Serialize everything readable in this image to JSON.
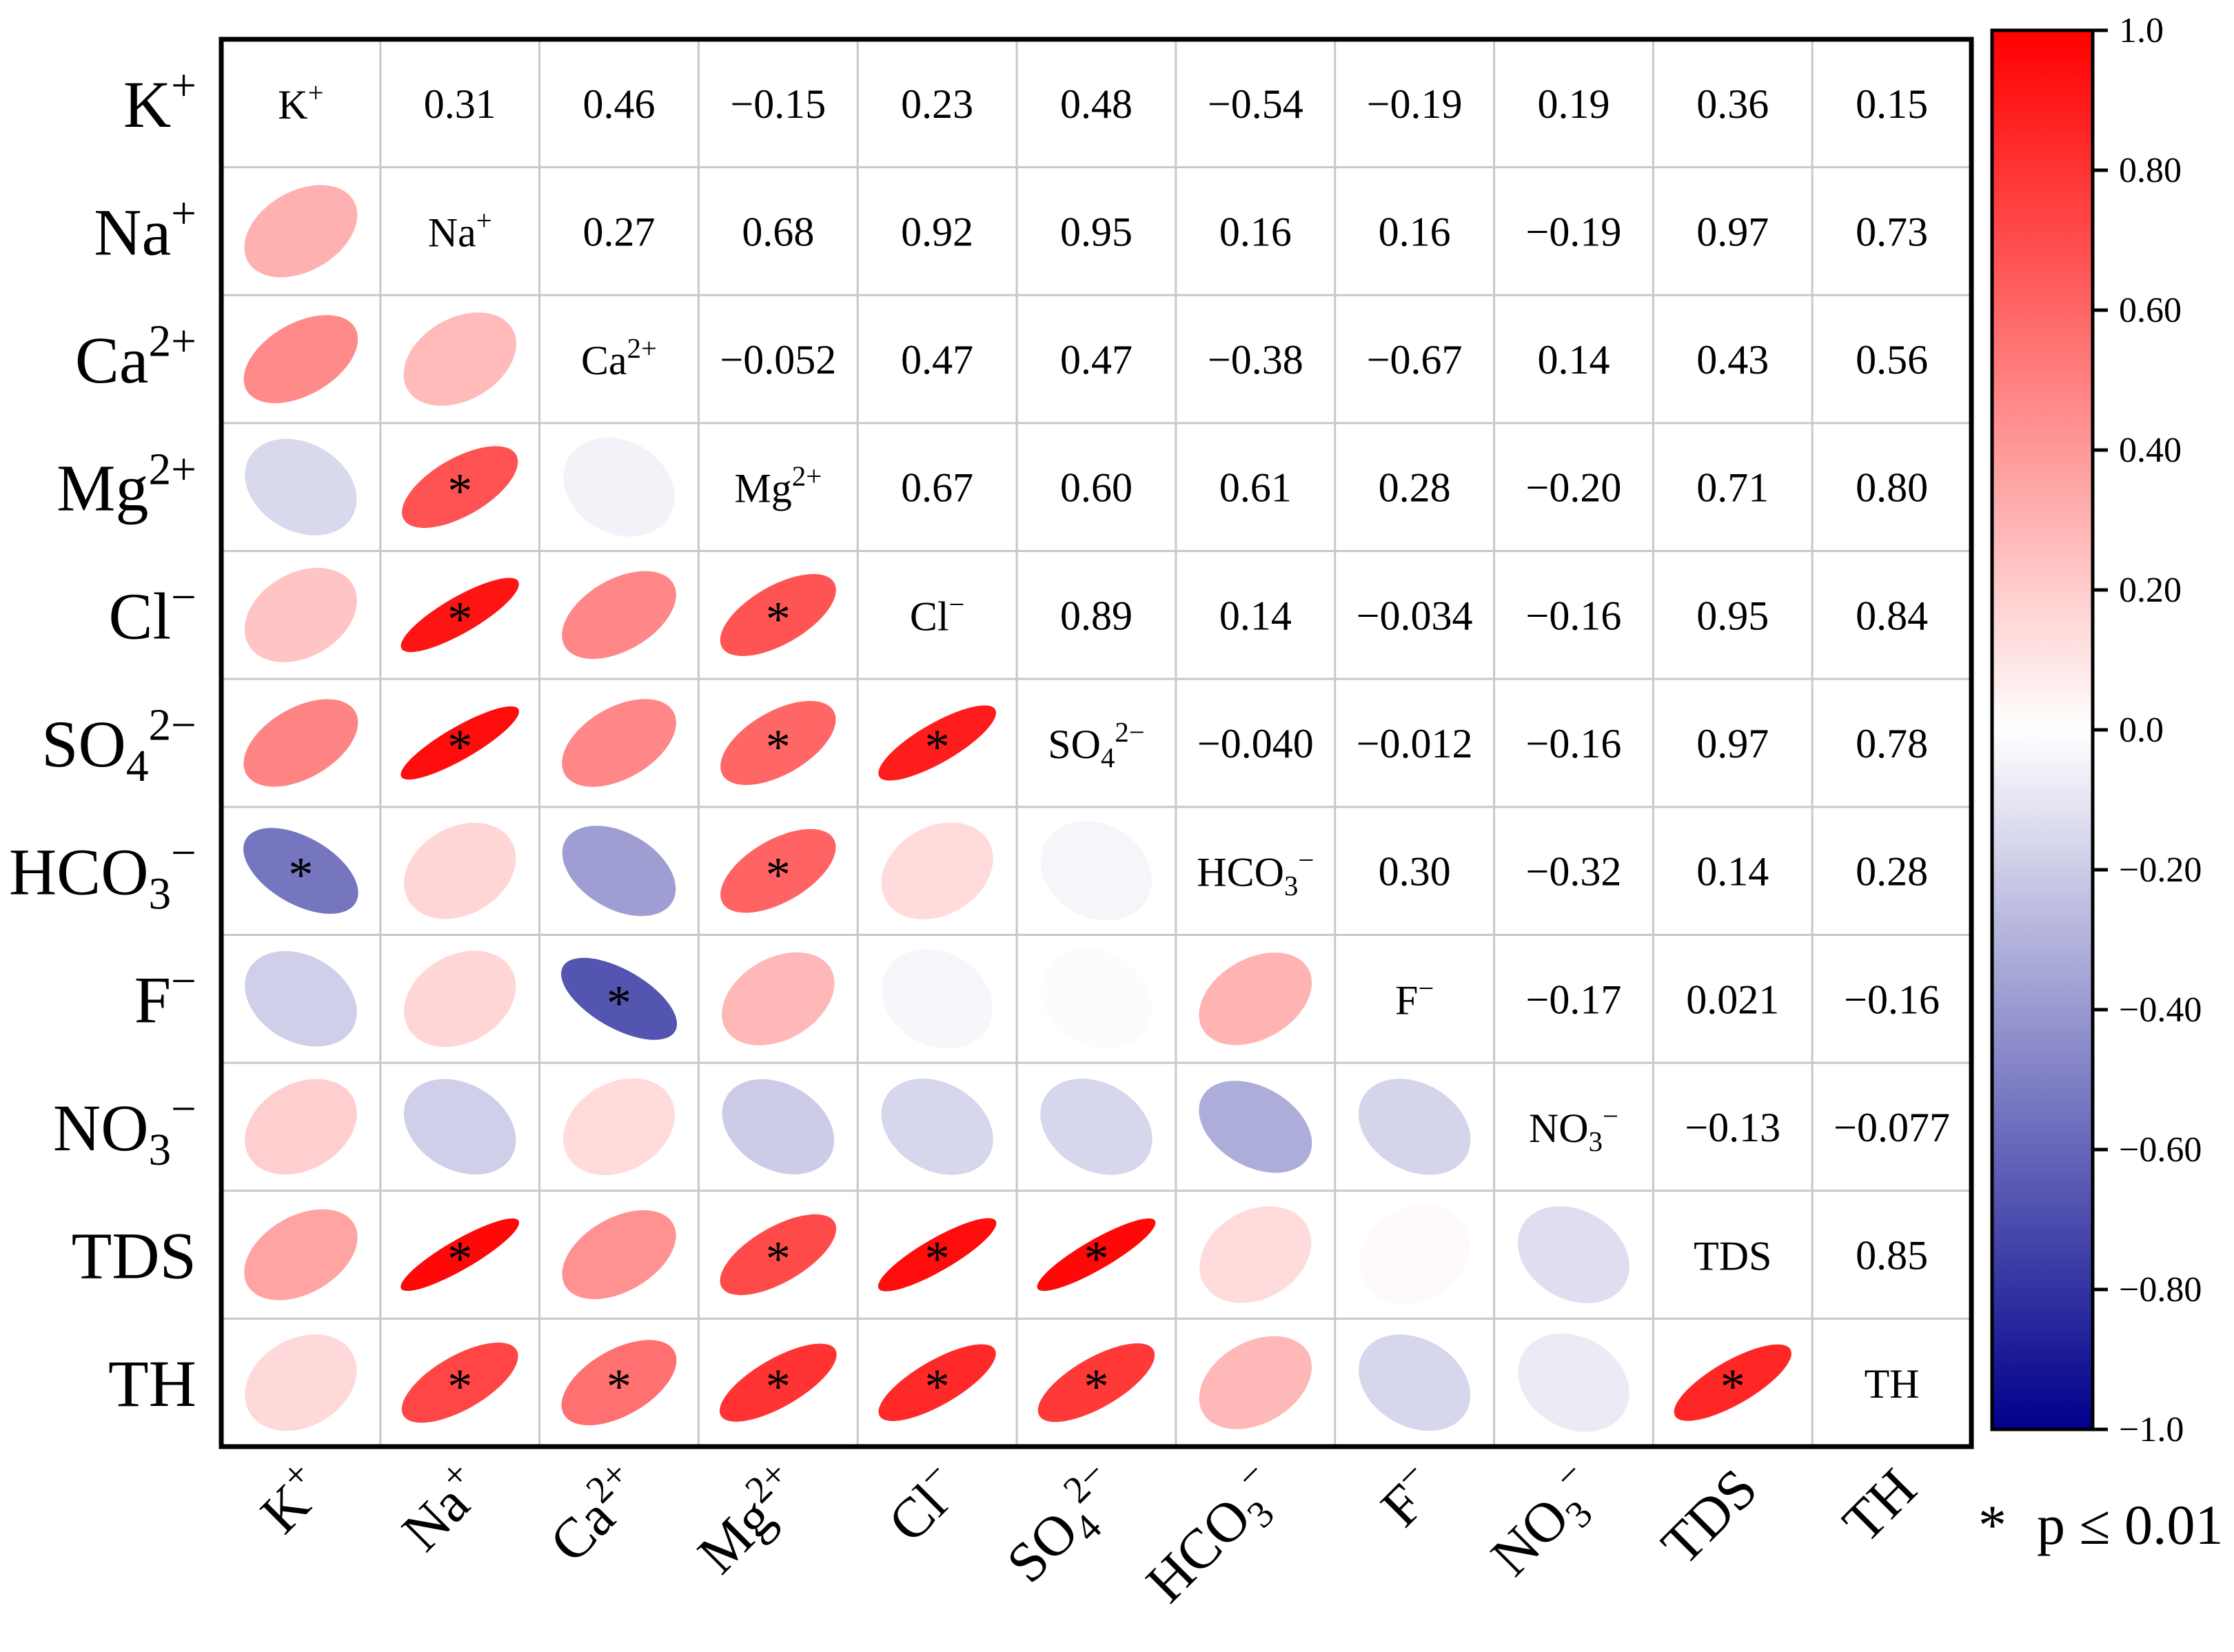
{
  "chart_data": {
    "type": "heatmap",
    "subtype": "correlation-matrix-ellipse",
    "variables": [
      {
        "id": "K",
        "base": "K",
        "sub": "",
        "sup": "+"
      },
      {
        "id": "Na",
        "base": "Na",
        "sub": "",
        "sup": "+"
      },
      {
        "id": "Ca",
        "base": "Ca",
        "sub": "",
        "sup": "2+"
      },
      {
        "id": "Mg",
        "base": "Mg",
        "sub": "",
        "sup": "2+"
      },
      {
        "id": "Cl",
        "base": "Cl",
        "sub": "",
        "sup": "−"
      },
      {
        "id": "SO4",
        "base": "SO",
        "sub": "4",
        "sup": "2−"
      },
      {
        "id": "HCO3",
        "base": "HCO",
        "sub": "3",
        "sup": "−"
      },
      {
        "id": "F",
        "base": "F",
        "sub": "",
        "sup": "−"
      },
      {
        "id": "NO3",
        "base": "NO",
        "sub": "3",
        "sup": "−"
      },
      {
        "id": "TDS",
        "base": "TDS",
        "sub": "",
        "sup": ""
      },
      {
        "id": "TH",
        "base": "TH",
        "sub": "",
        "sup": ""
      }
    ],
    "upper_labels": [
      [
        null,
        "0.31",
        "0.46",
        "−0.15",
        "0.23",
        "0.48",
        "−0.54",
        "−0.19",
        "0.19",
        "0.36",
        "0.15"
      ],
      [
        null,
        null,
        "0.27",
        "0.68",
        "0.92",
        "0.95",
        "0.16",
        "0.16",
        "−0.19",
        "0.97",
        "0.73"
      ],
      [
        null,
        null,
        null,
        "−0.052",
        "0.47",
        "0.47",
        "−0.38",
        "−0.67",
        "0.14",
        "0.43",
        "0.56"
      ],
      [
        null,
        null,
        null,
        null,
        "0.67",
        "0.60",
        "0.61",
        "0.28",
        "−0.20",
        "0.71",
        "0.80"
      ],
      [
        null,
        null,
        null,
        null,
        null,
        "0.89",
        "0.14",
        "−0.034",
        "−0.16",
        "0.95",
        "0.84"
      ],
      [
        null,
        null,
        null,
        null,
        null,
        null,
        "−0.040",
        "−0.012",
        "−0.16",
        "0.97",
        "0.78"
      ],
      [
        null,
        null,
        null,
        null,
        null,
        null,
        null,
        "0.30",
        "−0.32",
        "0.14",
        "0.28"
      ],
      [
        null,
        null,
        null,
        null,
        null,
        null,
        null,
        null,
        "−0.17",
        "0.021",
        "−0.16"
      ],
      [
        null,
        null,
        null,
        null,
        null,
        null,
        null,
        null,
        null,
        "−0.13",
        "−0.077"
      ],
      [
        null,
        null,
        null,
        null,
        null,
        null,
        null,
        null,
        null,
        null,
        "0.85"
      ],
      [
        null,
        null,
        null,
        null,
        null,
        null,
        null,
        null,
        null,
        null,
        null
      ]
    ],
    "matrix": [
      [
        1,
        0.31,
        0.46,
        -0.15,
        0.23,
        0.48,
        -0.54,
        -0.19,
        0.19,
        0.36,
        0.15
      ],
      [
        0.31,
        1,
        0.27,
        0.68,
        0.92,
        0.95,
        0.16,
        0.16,
        -0.19,
        0.97,
        0.73
      ],
      [
        0.46,
        0.27,
        1,
        -0.052,
        0.47,
        0.47,
        -0.38,
        -0.67,
        0.14,
        0.43,
        0.56
      ],
      [
        -0.15,
        0.68,
        -0.052,
        1,
        0.67,
        0.6,
        0.61,
        0.28,
        -0.2,
        0.71,
        0.8
      ],
      [
        0.23,
        0.92,
        0.47,
        0.67,
        1,
        0.89,
        0.14,
        -0.034,
        -0.16,
        0.95,
        0.84
      ],
      [
        0.48,
        0.95,
        0.47,
        0.6,
        0.89,
        1,
        -0.04,
        -0.012,
        -0.16,
        0.97,
        0.78
      ],
      [
        -0.54,
        0.16,
        -0.38,
        0.61,
        0.14,
        -0.04,
        1,
        0.3,
        -0.32,
        0.14,
        0.28
      ],
      [
        -0.19,
        0.16,
        -0.67,
        0.28,
        -0.034,
        -0.012,
        0.3,
        1,
        -0.17,
        0.021,
        -0.16
      ],
      [
        0.19,
        -0.19,
        0.14,
        -0.2,
        -0.16,
        -0.16,
        -0.32,
        -0.17,
        1,
        -0.13,
        -0.077
      ],
      [
        0.36,
        0.97,
        0.43,
        0.71,
        0.95,
        0.97,
        0.14,
        0.021,
        -0.13,
        1,
        0.85
      ],
      [
        0.15,
        0.73,
        0.56,
        0.8,
        0.84,
        0.78,
        0.28,
        -0.16,
        -0.077,
        0.85,
        1
      ]
    ],
    "significant": [
      [
        false,
        false,
        false,
        false,
        false,
        false,
        true,
        false,
        false,
        false,
        false
      ],
      [
        false,
        false,
        false,
        true,
        true,
        true,
        false,
        false,
        false,
        true,
        true
      ],
      [
        false,
        false,
        false,
        false,
        false,
        false,
        false,
        true,
        false,
        false,
        true
      ],
      [
        false,
        true,
        false,
        false,
        true,
        true,
        true,
        false,
        false,
        true,
        true
      ],
      [
        false,
        true,
        false,
        true,
        false,
        true,
        false,
        false,
        false,
        true,
        true
      ],
      [
        false,
        true,
        false,
        true,
        true,
        false,
        false,
        false,
        false,
        true,
        true
      ],
      [
        true,
        false,
        false,
        true,
        false,
        false,
        false,
        false,
        false,
        false,
        false
      ],
      [
        false,
        false,
        true,
        false,
        false,
        false,
        false,
        false,
        false,
        false,
        false
      ],
      [
        false,
        false,
        false,
        false,
        false,
        false,
        false,
        false,
        false,
        false,
        false
      ],
      [
        false,
        true,
        false,
        true,
        true,
        true,
        false,
        false,
        false,
        false,
        true
      ],
      [
        false,
        true,
        true,
        true,
        true,
        true,
        false,
        false,
        false,
        true,
        false
      ]
    ],
    "colorbar": {
      "range": [
        -1.0,
        1.0
      ],
      "ticks": [
        1.0,
        0.8,
        0.6,
        0.4,
        0.2,
        0.0,
        -0.2,
        -0.4,
        -0.6,
        -0.8,
        -1.0
      ],
      "tick_labels": [
        "1.0",
        "0.80",
        "0.60",
        "0.40",
        "0.20",
        "0.0",
        "−0.20",
        "−0.40",
        "−0.60",
        "−0.80",
        "−1.0"
      ],
      "colors": {
        "negative": "#00008B",
        "neutral": "#FFFFFF",
        "positive": "#FF0000"
      }
    },
    "legend": {
      "symbol": "*",
      "text": "p ≤ 0.01"
    }
  }
}
